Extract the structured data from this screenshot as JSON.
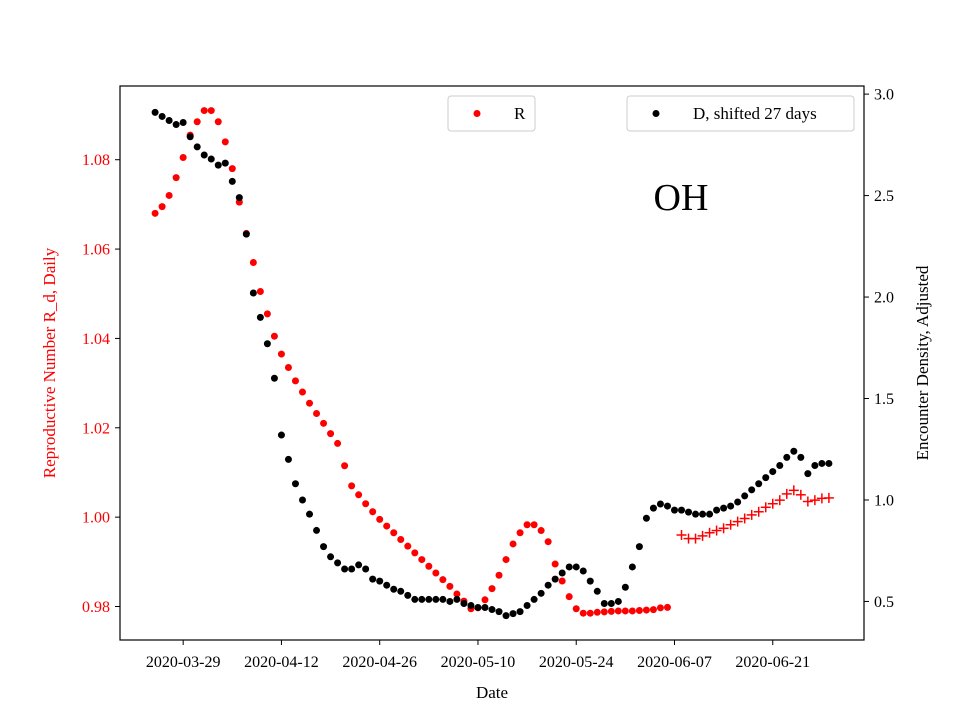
{
  "chart_data": {
    "type": "scatter",
    "state_label": "OH",
    "xlabel": "Date",
    "ylabel_left": "Reproductive Number R_d, Daily",
    "ylabel_right": "Encounter Density, Adjusted",
    "x_ticks": [
      "2020-03-29",
      "2020-04-12",
      "2020-04-26",
      "2020-05-10",
      "2020-05-24",
      "2020-06-07",
      "2020-06-21"
    ],
    "y_left_ticks": [
      "0.98",
      "1.00",
      "1.02",
      "1.04",
      "1.06",
      "1.08"
    ],
    "y_right_ticks": [
      "0.5",
      "1.0",
      "1.5",
      "2.0",
      "2.5",
      "3.0"
    ],
    "x_range": [
      "2020-03-20",
      "2020-07-04"
    ],
    "y_left_range": [
      0.9725,
      1.0965
    ],
    "y_right_range": [
      0.31,
      3.04
    ],
    "colors": {
      "r_series": "#ff0000",
      "d_series": "#000000",
      "left_axis_text": "#ff0000"
    },
    "legend": [
      {
        "label": "R",
        "color": "#ff0000",
        "position": "top-center"
      },
      {
        "label": "D, shifted 27 days",
        "color": "#000000",
        "position": "top-right"
      }
    ],
    "series": [
      {
        "name": "R",
        "axis": "left",
        "marker": "dot",
        "start_date": "2020-03-25",
        "values": [
          1.068,
          1.0695,
          1.072,
          1.076,
          1.0805,
          1.0855,
          1.0885,
          1.091,
          1.091,
          1.0885,
          1.084,
          1.078,
          1.0705,
          1.0635,
          1.057,
          1.0505,
          1.0455,
          1.0405,
          1.0365,
          1.0335,
          1.0305,
          1.028,
          1.0255,
          1.0232,
          1.021,
          1.0187,
          1.0165,
          1.0115,
          1.007,
          1.005,
          1.003,
          1.0012,
          0.9995,
          0.998,
          0.9965,
          0.995,
          0.9935,
          0.992,
          0.9905,
          0.989,
          0.9875,
          0.986,
          0.9845,
          0.9828,
          0.9812,
          0.9795,
          0.9797,
          0.9815,
          0.984,
          0.987,
          0.9905,
          0.994,
          0.9965,
          0.9983,
          0.9983,
          0.997,
          0.9945,
          0.9895,
          0.9857,
          0.9822,
          0.9795,
          0.9785,
          0.9785,
          0.9787,
          0.9788,
          0.9789,
          0.979,
          0.979,
          0.979,
          0.9791,
          0.9792,
          0.9793,
          0.9797,
          0.9798
        ]
      },
      {
        "name": "R",
        "axis": "left",
        "marker": "plus",
        "start_date": "2020-06-08",
        "values": [
          0.996,
          0.9952,
          0.9952,
          0.9958,
          0.9965,
          0.997,
          0.9975,
          0.9983,
          0.999,
          0.9997,
          1.0005,
          1.0012,
          1.0022,
          1.003,
          1.0038,
          1.0052,
          1.006,
          1.005,
          1.0035,
          1.0038,
          1.0042,
          1.0043
        ]
      },
      {
        "name": "D, shifted 27 days",
        "axis": "right",
        "marker": "dot",
        "start_date": "2020-03-25",
        "values": [
          2.91,
          2.89,
          2.87,
          2.85,
          2.86,
          2.79,
          2.74,
          2.7,
          2.68,
          2.65,
          2.66,
          2.57,
          2.49,
          2.31,
          2.02,
          1.9,
          1.77,
          1.6,
          1.32,
          1.2,
          1.08,
          1.0,
          0.93,
          0.85,
          0.77,
          0.72,
          0.69,
          0.66,
          0.66,
          0.68,
          0.66,
          0.61,
          0.6,
          0.58,
          0.56,
          0.55,
          0.53,
          0.51,
          0.51,
          0.51,
          0.51,
          0.51,
          0.5,
          0.51,
          0.49,
          0.48,
          0.47,
          0.47,
          0.46,
          0.45,
          0.43,
          0.44,
          0.45,
          0.48,
          0.51,
          0.54,
          0.58,
          0.61,
          0.64,
          0.67,
          0.67,
          0.65,
          0.6,
          0.55,
          0.49,
          0.49,
          0.5,
          0.57,
          0.67,
          0.77,
          0.91,
          0.96,
          0.98,
          0.97,
          0.95,
          0.95,
          0.94,
          0.93,
          0.93,
          0.93,
          0.95,
          0.96,
          0.97,
          0.99,
          1.02,
          1.05,
          1.08,
          1.11,
          1.14,
          1.17,
          1.21,
          1.24,
          1.21,
          1.13,
          1.17,
          1.18,
          1.18
        ]
      }
    ]
  }
}
